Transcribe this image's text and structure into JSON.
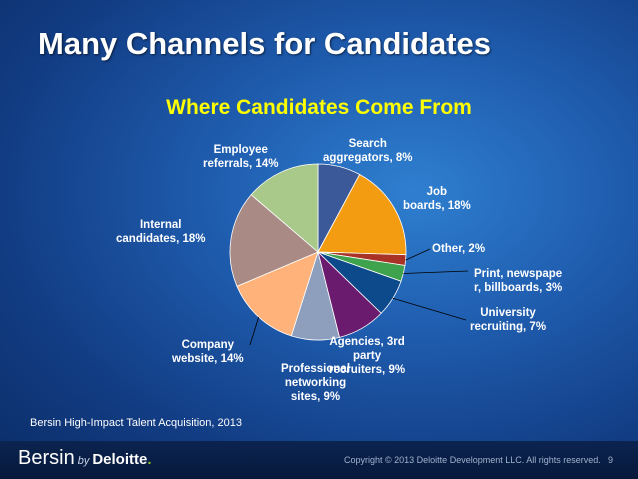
{
  "slide": {
    "title": "Many Channels for Candidates",
    "source": "Bersin High-Impact Talent Acquisition, 2013",
    "copyright": "Copyright © 2013 Deloitte Development LLC. All rights reserved.",
    "page_number": "9"
  },
  "brand": {
    "name": "Bersin",
    "by": "by",
    "company": "Deloitte",
    "dot": "."
  },
  "chart_data": {
    "type": "pie",
    "title": "Where Candidates Come From",
    "slices": [
      {
        "name": "Search aggregators",
        "value": 8,
        "label_lines": [
          "Search",
          "aggregators, 8%"
        ],
        "color": "#3b5998"
      },
      {
        "name": "Job boards",
        "value": 18,
        "label_lines": [
          "Job",
          "boards, 18%"
        ],
        "color": "#f39c12"
      },
      {
        "name": "Other",
        "value": 2,
        "label_lines": [
          "Other, 2%"
        ],
        "color": "#a93226"
      },
      {
        "name": "Print, newspaper, billboards",
        "value": 3,
        "label_lines": [
          "Print, newspape",
          "r, billboards, 3%"
        ],
        "color": "#3fa34d"
      },
      {
        "name": "University recruiting",
        "value": 7,
        "label_lines": [
          "University",
          "recruiting, 7%"
        ],
        "color": "#0d4a8c"
      },
      {
        "name": "Agencies, 3rd party recruiters",
        "value": 9,
        "label_lines": [
          "Agencies, 3rd",
          "party",
          "recruiters, 9%"
        ],
        "color": "#6a1b6e"
      },
      {
        "name": "Professional networking sites",
        "value": 9,
        "label_lines": [
          "Professional",
          "networking",
          "sites, 9%"
        ],
        "color": "#8e9fbd"
      },
      {
        "name": "Company website",
        "value": 14,
        "label_lines": [
          "Company",
          "website, 14%"
        ],
        "color": "#ffb27a"
      },
      {
        "name": "Internal candidates",
        "value": 18,
        "label_lines": [
          "Internal",
          "candidates, 18%"
        ],
        "color": "#a98a84"
      },
      {
        "name": "Employee referrals",
        "value": 14,
        "label_lines": [
          "Employee",
          "referrals, 14%"
        ],
        "color": "#a8c98a"
      }
    ]
  }
}
